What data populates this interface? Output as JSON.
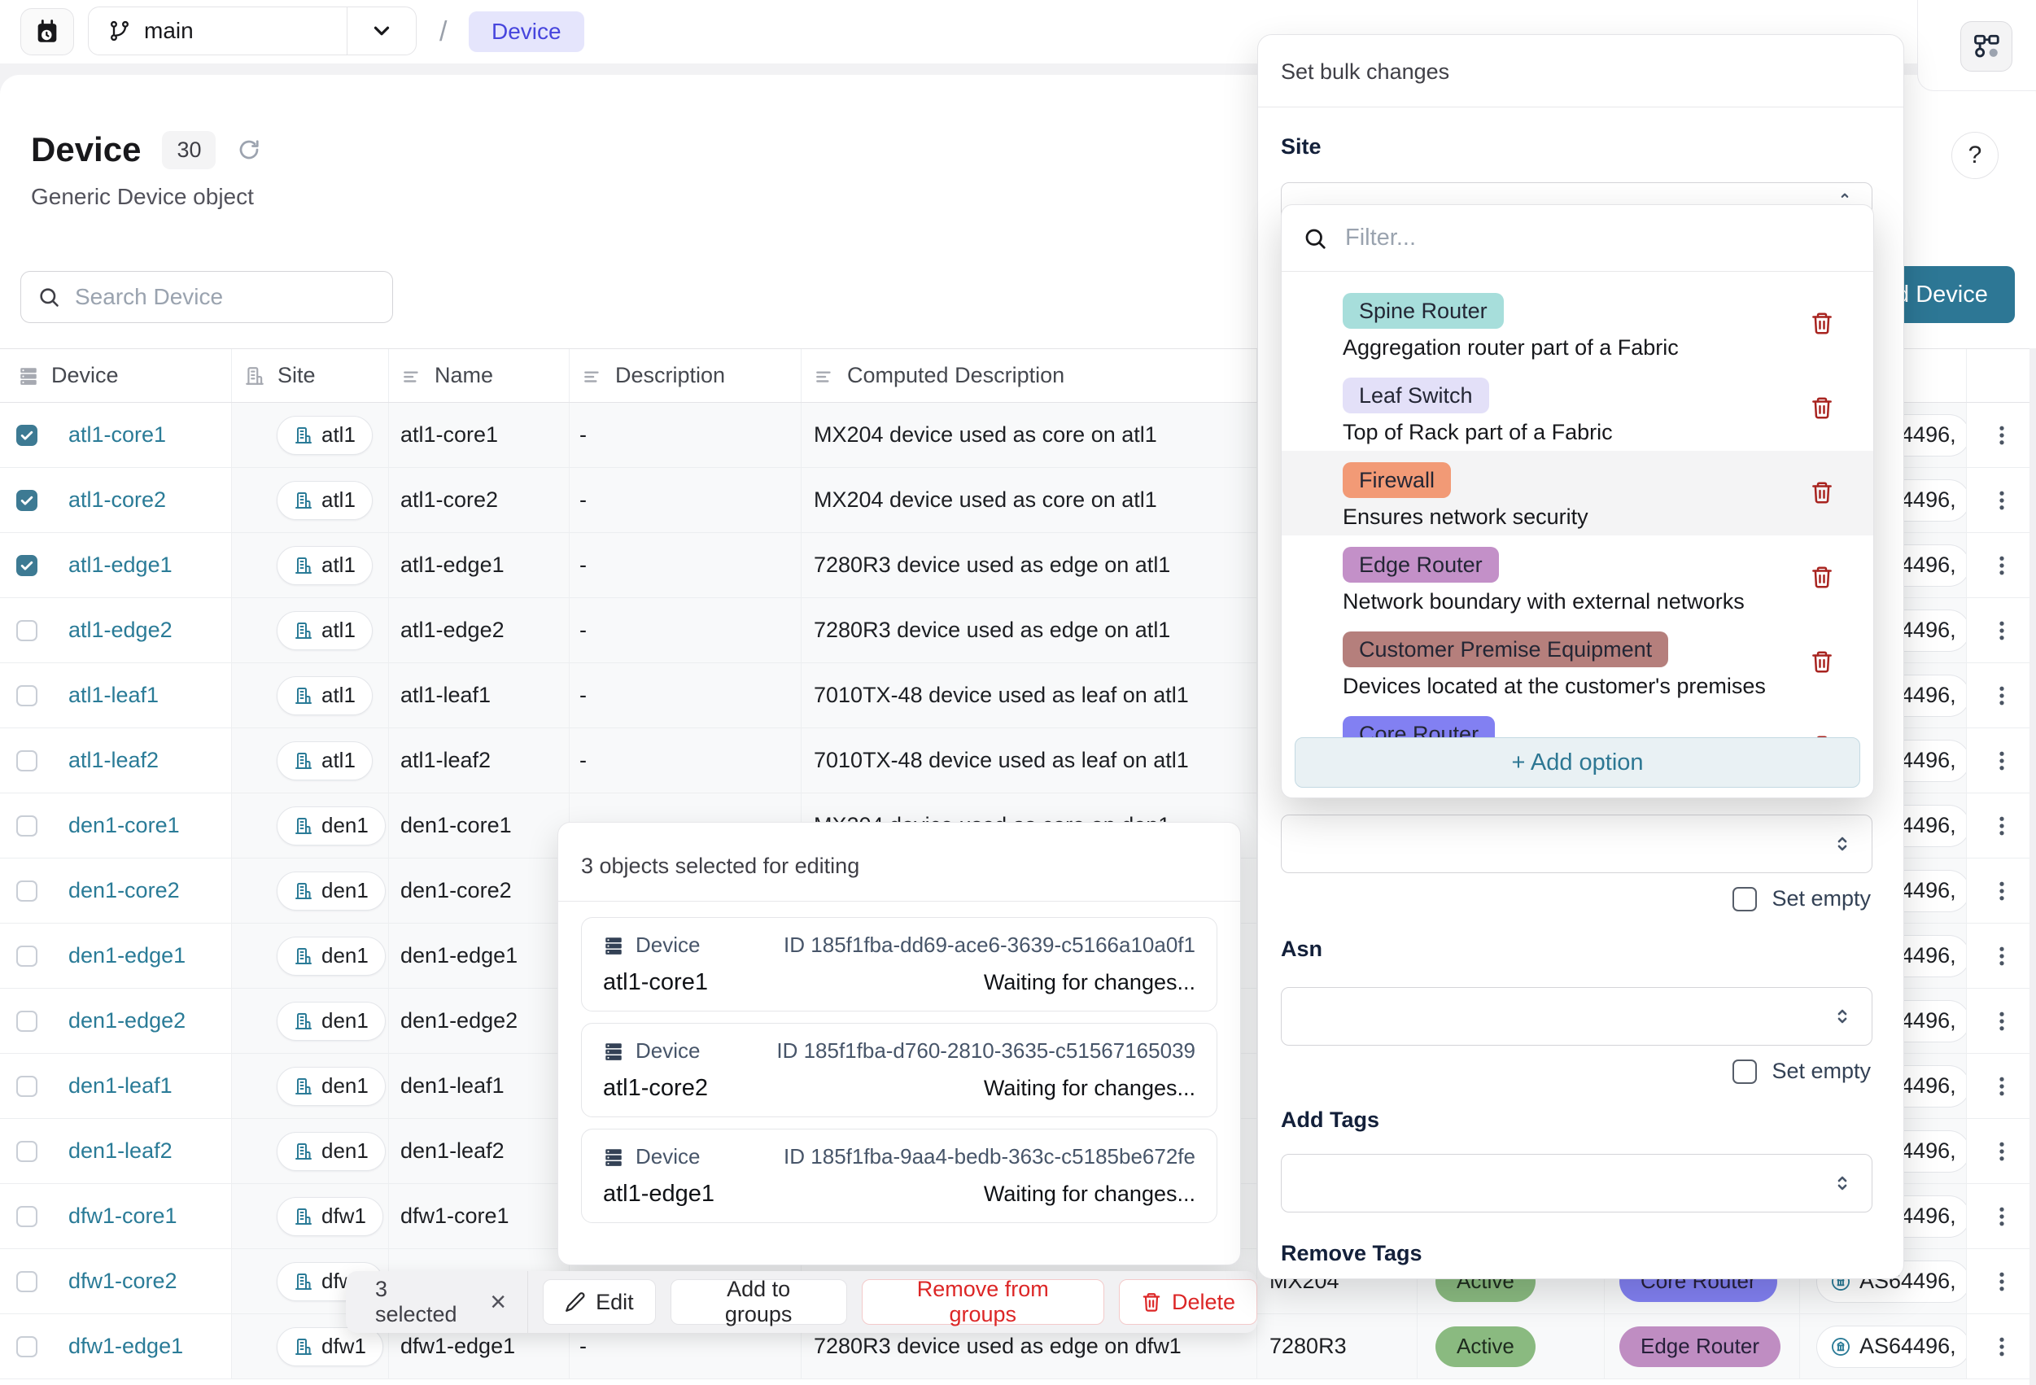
{
  "colors": {
    "accent_teal": "#2d7795",
    "link_teal": "#2a7b97",
    "checkbox_checked": "#3d7a93",
    "breadcrumb_bg": "#e5e5fc",
    "breadcrumb_text": "#4745dd",
    "danger_red": "#dc2626",
    "trash_red": "#a82420",
    "status_active_bg": "#8aba80",
    "add_option_bg": "#e9f1f4"
  },
  "topbar": {
    "branch": "main",
    "separator": "/",
    "breadcrumb": "Device"
  },
  "page": {
    "title": "Device",
    "count": "30",
    "subtitle": "Generic Device object",
    "help": "?"
  },
  "toolbar": {
    "search_placeholder": "Search Device",
    "add_device_label": "+ Add Device"
  },
  "table": {
    "columns": [
      "Device",
      "Site",
      "Name",
      "Description",
      "Computed Description"
    ],
    "rows": [
      {
        "device": "atl1-core1",
        "site": "atl1",
        "name": "atl1-core1",
        "desc": "-",
        "computed": "MX204 device used as core on atl1",
        "checked": true,
        "model": "",
        "status": "",
        "role": "",
        "role_bg": "",
        "asn": "AS64496,"
      },
      {
        "device": "atl1-core2",
        "site": "atl1",
        "name": "atl1-core2",
        "desc": "-",
        "computed": "MX204 device used as core on atl1",
        "checked": true,
        "model": "",
        "status": "",
        "role": "",
        "role_bg": "",
        "asn": "AS64496,"
      },
      {
        "device": "atl1-edge1",
        "site": "atl1",
        "name": "atl1-edge1",
        "desc": "-",
        "computed": "7280R3 device used as edge on atl1",
        "checked": true,
        "model": "",
        "status": "",
        "role": "",
        "role_bg": "",
        "asn": "AS64496,"
      },
      {
        "device": "atl1-edge2",
        "site": "atl1",
        "name": "atl1-edge2",
        "desc": "-",
        "computed": "7280R3 device used as edge on atl1",
        "checked": false,
        "model": "",
        "status": "",
        "role": "",
        "role_bg": "",
        "asn": "AS64496,"
      },
      {
        "device": "atl1-leaf1",
        "site": "atl1",
        "name": "atl1-leaf1",
        "desc": "-",
        "computed": "7010TX-48 device used as leaf on atl1",
        "checked": false,
        "model": "",
        "status": "",
        "role": "",
        "role_bg": "",
        "asn": "AS64496,"
      },
      {
        "device": "atl1-leaf2",
        "site": "atl1",
        "name": "atl1-leaf2",
        "desc": "-",
        "computed": "7010TX-48 device used as leaf on atl1",
        "checked": false,
        "model": "",
        "status": "",
        "role": "",
        "role_bg": "",
        "asn": "AS64496,"
      },
      {
        "device": "den1-core1",
        "site": "den1",
        "name": "den1-core1",
        "desc": "-",
        "computed": "MX204 device used as core on den1",
        "checked": false,
        "model": "",
        "status": "",
        "role": "",
        "role_bg": "",
        "asn": "AS64496,"
      },
      {
        "device": "den1-core2",
        "site": "den1",
        "name": "den1-core2",
        "desc": "-",
        "computed": "",
        "checked": false,
        "model": "",
        "status": "",
        "role": "",
        "role_bg": "",
        "asn": "AS64496,"
      },
      {
        "device": "den1-edge1",
        "site": "den1",
        "name": "den1-edge1",
        "desc": "-",
        "computed": "",
        "checked": false,
        "model": "",
        "status": "",
        "role": "",
        "role_bg": "",
        "asn": "AS64496,"
      },
      {
        "device": "den1-edge2",
        "site": "den1",
        "name": "den1-edge2",
        "desc": "-",
        "computed": "",
        "checked": false,
        "model": "",
        "status": "",
        "role": "",
        "role_bg": "",
        "asn": "AS64496,"
      },
      {
        "device": "den1-leaf1",
        "site": "den1",
        "name": "den1-leaf1",
        "desc": "-",
        "computed": "",
        "checked": false,
        "model": "",
        "status": "",
        "role": "",
        "role_bg": "",
        "asn": "AS64496,"
      },
      {
        "device": "den1-leaf2",
        "site": "den1",
        "name": "den1-leaf2",
        "desc": "-",
        "computed": "",
        "checked": false,
        "model": "",
        "status": "",
        "role": "",
        "role_bg": "",
        "asn": "AS64496,"
      },
      {
        "device": "dfw1-core1",
        "site": "dfw1",
        "name": "dfw1-core1",
        "desc": "-",
        "computed": "",
        "checked": false,
        "model": "",
        "status": "",
        "role": "",
        "role_bg": "",
        "asn": "AS64496,"
      },
      {
        "device": "dfw1-core2",
        "site": "dfw1",
        "name": "dfw1-core2",
        "desc": "-",
        "computed": "",
        "checked": false,
        "model": "MX204",
        "status": "Active",
        "role": "Core Router",
        "role_bg": "#8280f2",
        "asn": "AS64496,"
      },
      {
        "device": "dfw1-edge1",
        "site": "dfw1",
        "name": "dfw1-edge1",
        "desc": "-",
        "computed": "7280R3 device used as edge on dfw1",
        "checked": false,
        "model": "7280R3",
        "status": "Active",
        "role": "Edge Router",
        "role_bg": "#bf8dc2",
        "asn": "AS64496,"
      }
    ]
  },
  "bulk_panel": {
    "title": "Set bulk changes",
    "site_label": "Site",
    "asn_label": "Asn",
    "add_tags_label": "Add Tags",
    "remove_tags_label": "Remove Tags",
    "set_empty_label": "Set empty"
  },
  "site_dropdown": {
    "filter_placeholder": "Filter...",
    "add_option_label": "+ Add option",
    "options": [
      {
        "label": "Spine Router",
        "bg": "#a7dedb",
        "desc": "Aggregation router part of a Fabric",
        "hover": false
      },
      {
        "label": "Leaf Switch",
        "bg": "#e3e0f8",
        "desc": "Top of Rack part of a Fabric",
        "hover": false
      },
      {
        "label": "Firewall",
        "bg": "#f29a76",
        "desc": "Ensures network security",
        "hover": true
      },
      {
        "label": "Edge Router",
        "bg": "#c390c8",
        "desc": "Network boundary with external networks",
        "hover": false
      },
      {
        "label": "Customer Premise Equipment",
        "bg": "#b57f7c",
        "desc": "Devices located at the customer's premises",
        "hover": false
      },
      {
        "label": "Core Router",
        "bg": "#8280f2",
        "desc": "",
        "hover": false
      }
    ]
  },
  "selection_popup": {
    "title": "3 objects selected for editing",
    "items": [
      {
        "type": "Device",
        "id": "ID 185f1fba-dd69-ace6-3639-c5166a10a0f1",
        "name": "atl1-core1",
        "status": "Waiting for changes..."
      },
      {
        "type": "Device",
        "id": "ID 185f1fba-d760-2810-3635-c51567165039",
        "name": "atl1-core2",
        "status": "Waiting for changes..."
      },
      {
        "type": "Device",
        "id": "ID 185f1fba-9aa4-bedb-363c-c5185be672fe",
        "name": "atl1-edge1",
        "status": "Waiting for changes..."
      }
    ]
  },
  "action_bar": {
    "selected_label": "3 selected",
    "close": "×",
    "edit": "Edit",
    "add_to_groups": "Add to groups",
    "remove_from_groups": "Remove from groups",
    "delete": "Delete"
  }
}
